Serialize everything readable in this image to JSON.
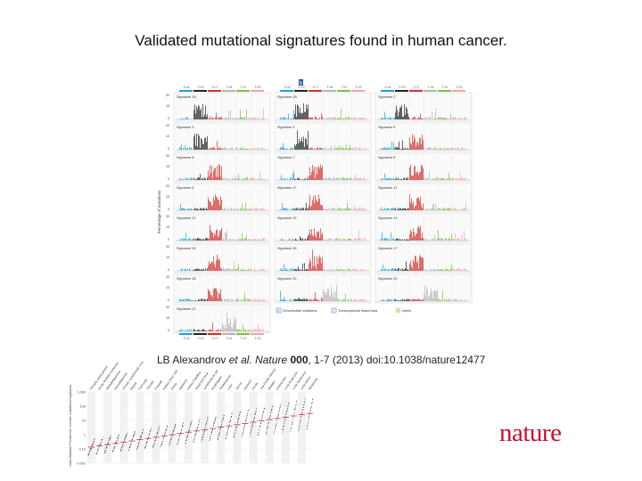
{
  "slide": {
    "title": "Validated mutational signatures found in human cancer.",
    "citation": {
      "authors": "LB Alexandrov",
      "etal": "et al.",
      "journal": "Nature",
      "volume": "000",
      "rest": ", 1-7 (2013) doi:10.1038/nature12477"
    },
    "brand": "nature"
  },
  "figure_a": {
    "panel_letter": "b",
    "substitution_classes": [
      "C>A",
      "C>G",
      "C>T",
      "T>A",
      "T>C",
      "T>G"
    ],
    "class_colors": [
      "#1ea0d8",
      "#222222",
      "#d0312d",
      "#b5b5b5",
      "#7ac143",
      "#f0a6b0"
    ],
    "y_axis_label": "Percentage of mutations",
    "y_ticks": [
      "30",
      "15",
      "0"
    ],
    "signatures": [
      [
        "Signature 1A",
        "Signature 1B",
        "Signature 2"
      ],
      [
        "Signature 3",
        "Signature 4",
        "Signature 5"
      ],
      [
        "Signature 6",
        "Signature 7",
        "Signature 8"
      ],
      [
        "Signature 9",
        "Signature 17",
        "Signature 11"
      ],
      [
        "Signature 12",
        "Signature 13",
        "Signature 14"
      ],
      [
        "Signature 15",
        "Signature 16",
        "Signature 17"
      ],
      [
        "Signature 18",
        "Signature 19",
        "Signature 20"
      ],
      [
        "Signature 21",
        "",
        ""
      ]
    ],
    "legend": {
      "d_label": "Dinucleotide mutations",
      "t_label": "Transcriptional strand bias",
      "i_label": "Indels"
    }
  },
  "figure_b": {
    "y_label": "Somatic Mutation Prevalence (number mutations/megabase)",
    "y_ticks": [
      "1,000",
      "100",
      "10",
      "1",
      "0.10",
      "0.001"
    ],
    "cancer_labels": [
      "Pilocytic Astrocytoma",
      "Acute Myeloid Leukemia",
      "Medulloblastoma",
      "Neuroblastoma",
      "Chronic Lymphocytic Leukemia",
      "Breast",
      "Pancreas",
      "Thyroid",
      "Prostate",
      "Kidney Clear Cell",
      "Ovary",
      "Myeloma",
      "Kidney Papillary",
      "Head and Neck",
      "Lymphoma B-cell",
      "Esophageal",
      "Glioblastoma",
      "Liver",
      "Uterus",
      "Stomach",
      "Cervix",
      "Low Grade Glioma",
      "Bladder",
      "Colorectum",
      "Lung Small Cell",
      "Lung Squamous",
      "Lung Adeno",
      "Melanoma"
    ]
  }
}
